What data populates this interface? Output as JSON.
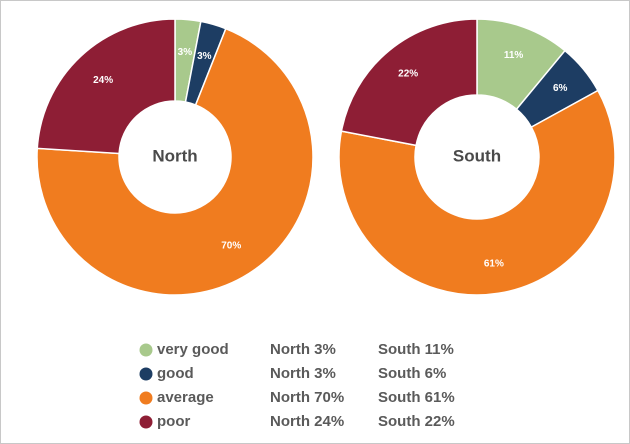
{
  "chart_data": [
    {
      "type": "donut",
      "title": "North",
      "categories": [
        "very good",
        "good",
        "average",
        "poor"
      ],
      "values": [
        3,
        3,
        70,
        24
      ],
      "value_labels": [
        "3%",
        "3%",
        "70%",
        "24%"
      ],
      "colors": [
        "#a8c98c",
        "#1d3d63",
        "#f07c1f",
        "#8e1e35"
      ]
    },
    {
      "type": "donut",
      "title": "South",
      "categories": [
        "very good",
        "good",
        "average",
        "poor"
      ],
      "values": [
        11,
        6,
        61,
        22
      ],
      "value_labels": [
        "11%",
        "6%",
        "61%",
        "22%"
      ],
      "colors": [
        "#a8c98c",
        "#1d3d63",
        "#f07c1f",
        "#8e1e35"
      ]
    }
  ]
}
